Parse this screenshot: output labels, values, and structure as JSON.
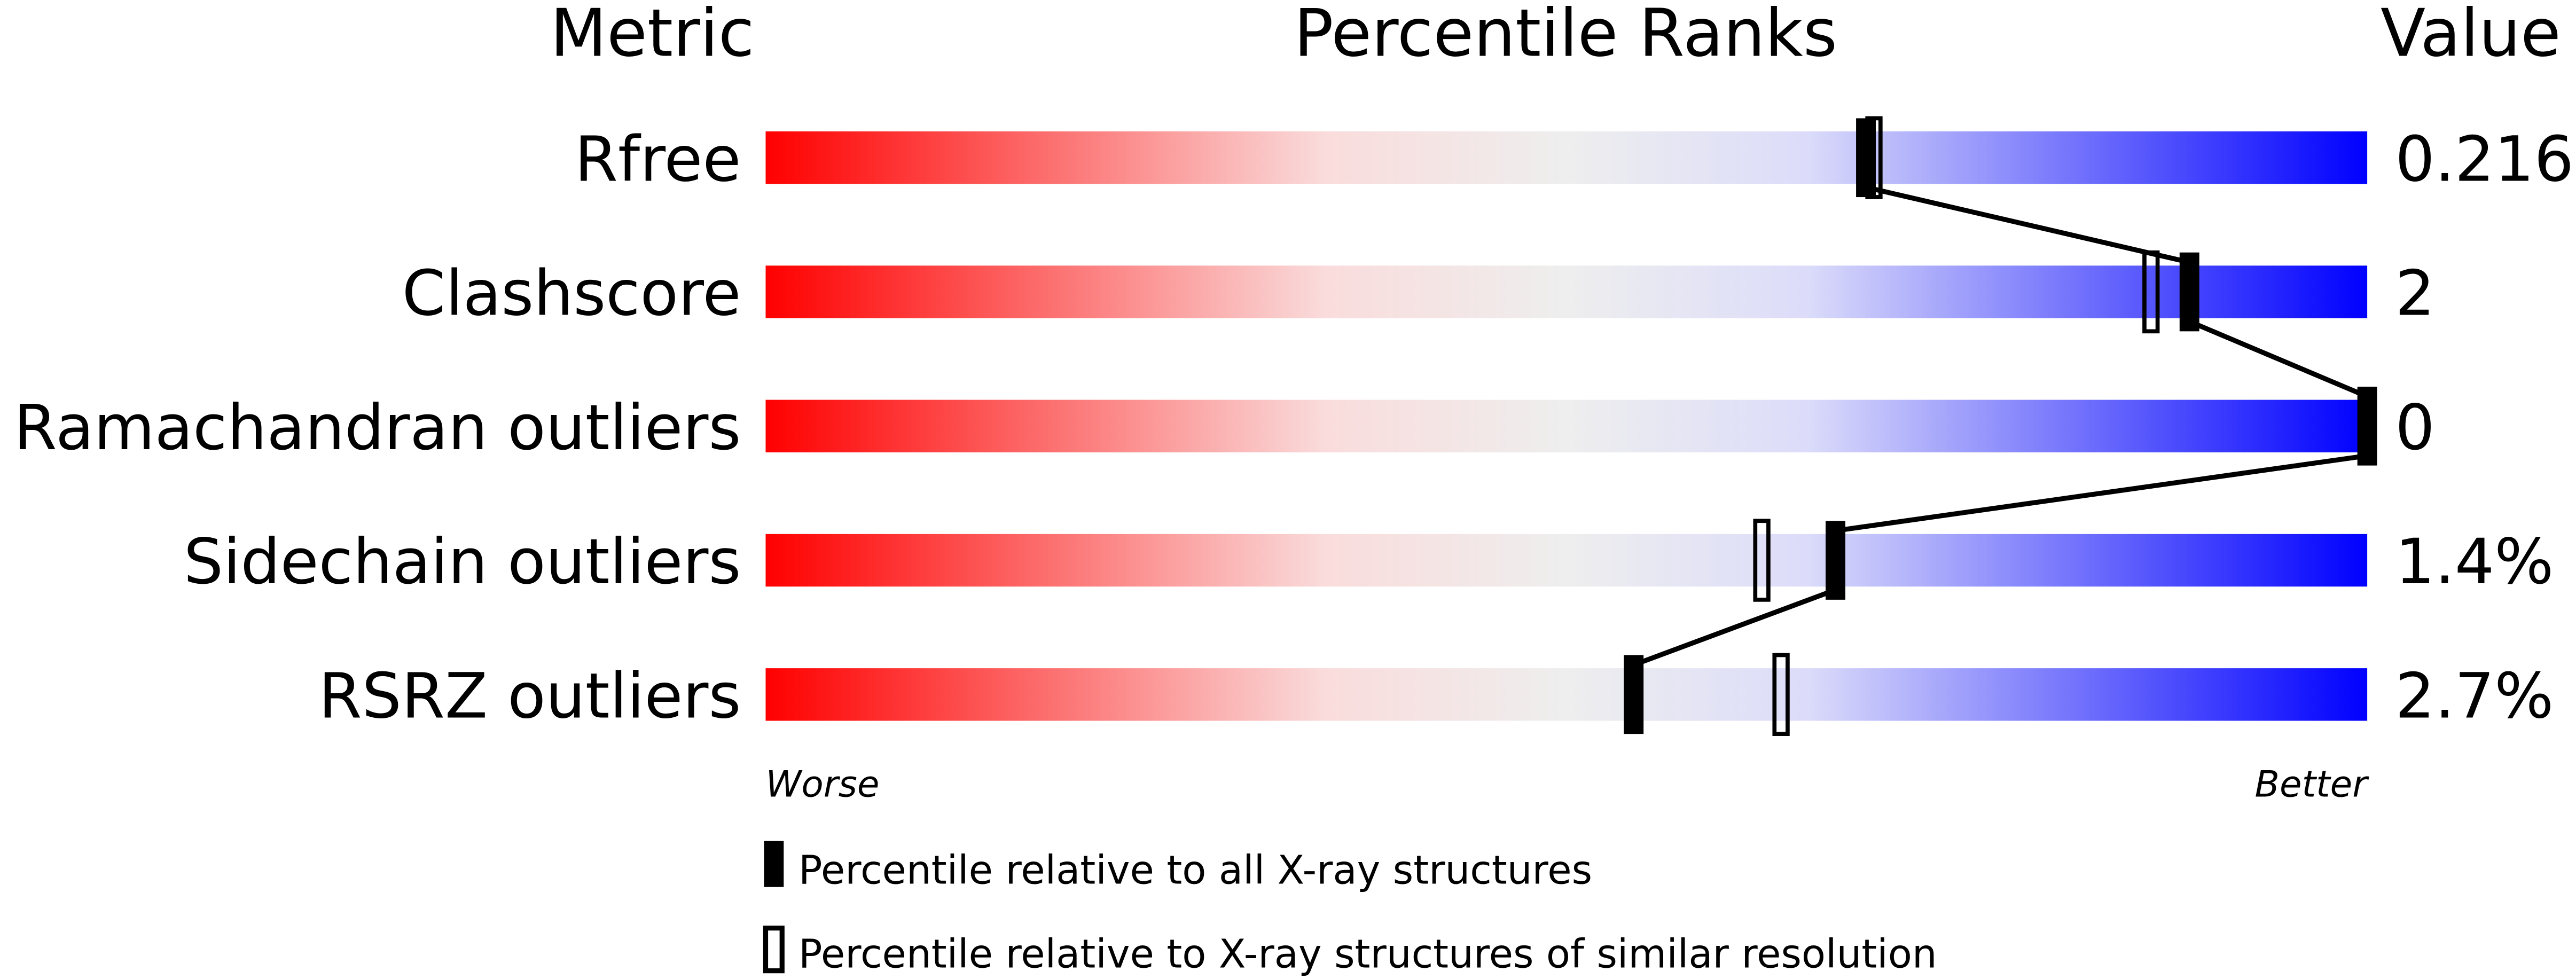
{
  "chart_data": {
    "type": "percentile-slider",
    "headers": {
      "metric": "Metric",
      "ranks": "Percentile Ranks",
      "value": "Value"
    },
    "xlim": [
      0,
      100
    ],
    "worse_label": "Worse",
    "better_label": "Better",
    "gradient_colors": [
      "#ff0000",
      "#fadcdc",
      "#eeeeee",
      "#dcdcfa",
      "#0000ff"
    ],
    "rows": [
      {
        "metric": "Rfree",
        "value": "0.216",
        "percentile_all": 68.7,
        "percentile_similar": 69.2
      },
      {
        "metric": "Clashscore",
        "value": "2",
        "percentile_all": 88.9,
        "percentile_similar": 86.5
      },
      {
        "metric": "Ramachandran outliers",
        "value": "0",
        "percentile_all": 100,
        "percentile_similar": 100
      },
      {
        "metric": "Sidechain outliers",
        "value": "1.4%",
        "percentile_all": 66.8,
        "percentile_similar": 62.2
      },
      {
        "metric": "RSRZ outliers",
        "value": "2.7%",
        "percentile_all": 54.2,
        "percentile_similar": 63.4
      }
    ],
    "legend": {
      "all": "Percentile relative to all X-ray structures",
      "similar": "Percentile relative to X-ray structures of similar resolution"
    }
  }
}
